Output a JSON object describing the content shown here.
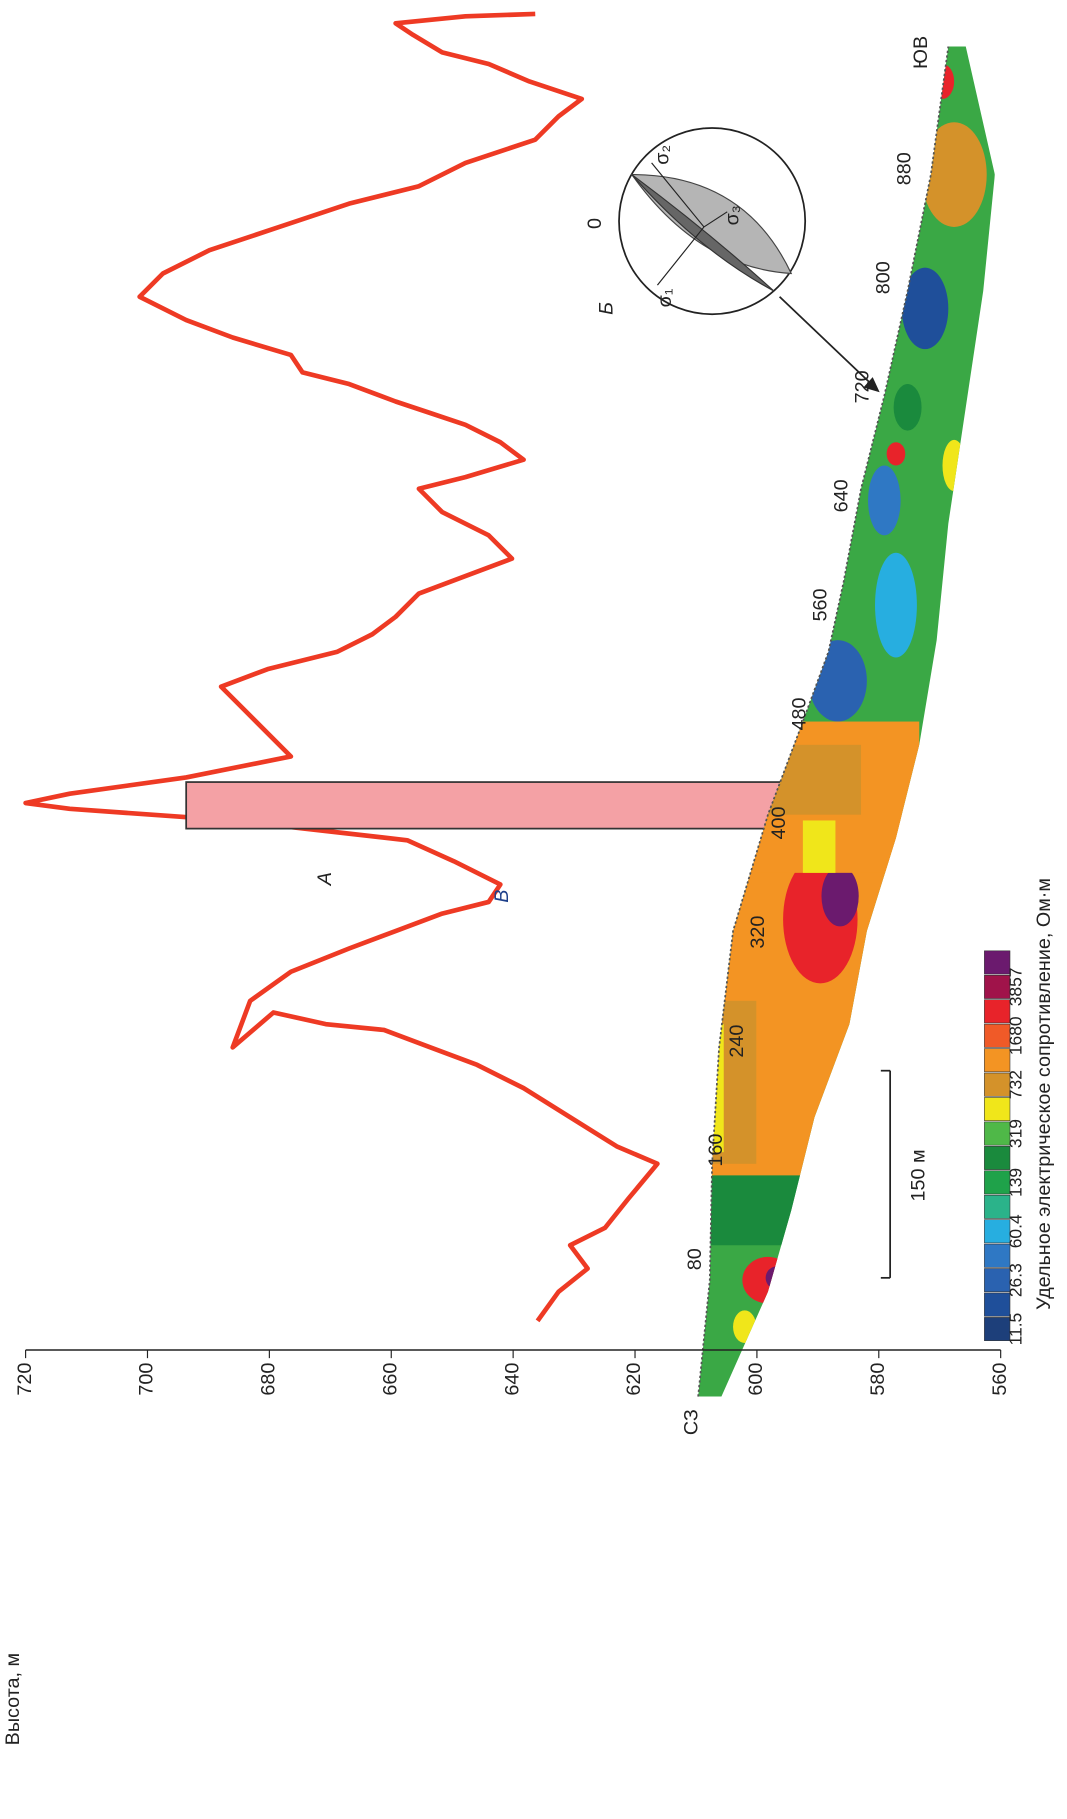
{
  "labels": {
    "a": "А",
    "v": "В",
    "b": "Б",
    "zero": "0",
    "nw": "СЗ",
    "se": "ЮВ",
    "scale": "150 м"
  },
  "stereonet": {
    "sigma1": "σ₁",
    "sigma2": "σ₂",
    "sigma3": "σ₃"
  },
  "height_axis": {
    "title": "Высота, м",
    "ticks": [
      720,
      700,
      680,
      660,
      640,
      620,
      600,
      580,
      560
    ]
  },
  "distance_axis": {
    "ticks": [
      80,
      160,
      240,
      320,
      400,
      480,
      560,
      640,
      720,
      800,
      880
    ]
  },
  "legend": {
    "title": "Удельное электрическое сопротивление, Ом·м",
    "values": [
      11.5,
      26.3,
      60.4,
      139,
      319,
      732,
      1680,
      3857
    ]
  }
}
